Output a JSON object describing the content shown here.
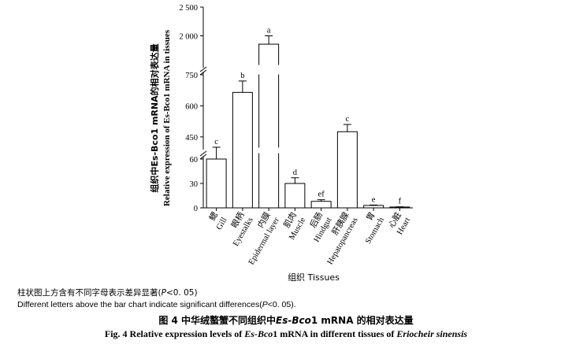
{
  "chart_data": {
    "type": "bar",
    "categories": [
      {
        "cn": "鳃",
        "en": "Gill"
      },
      {
        "cn": "眼柄",
        "en": "Eyestalks"
      },
      {
        "cn": "内膜",
        "en": "Epidermal layer"
      },
      {
        "cn": "肌肉",
        "en": "Muscle"
      },
      {
        "cn": "后肠",
        "en": "Hindgut"
      },
      {
        "cn": "肝胰腺",
        "en": "Hepatopancreas"
      },
      {
        "cn": "胃",
        "en": "Stomach"
      },
      {
        "cn": "心脏",
        "en": "Heart"
      }
    ],
    "values": [
      60,
      665,
      1855,
      30,
      8,
      475,
      3,
      1
    ],
    "errors": [
      2,
      55,
      145,
      7,
      2,
      35,
      0.5,
      0.3
    ],
    "significance_letters": [
      "c",
      "b",
      "a",
      "d",
      "ef",
      "c",
      "e",
      "f"
    ],
    "ylabel_cn": "组织中Es-Bco1 mRNA的相对表达量",
    "ylabel_en": "Relative expression of Es-Bco1 mRNA in tissues",
    "xlabel": "组织 Tissues",
    "y_ticks": [
      0,
      30,
      60,
      450,
      600,
      750,
      2000,
      2500
    ],
    "y_tick_labels": [
      "0",
      "30",
      "60",
      "450",
      "600",
      "750",
      "2 000",
      "2 500"
    ],
    "axis_breaks": true,
    "y_segments": [
      [
        0,
        60
      ],
      [
        400,
        750
      ],
      [
        1500,
        2500
      ]
    ]
  },
  "notes": {
    "cn_prefix": "柱状图上方含有不同字母表示差异显著(",
    "cn_p": "P",
    "cn_suffix": "<0. 05)",
    "en_prefix": "Different letters above the bar chart indicate significant differences(",
    "en_p": "P",
    "en_suffix": "<0. 05)."
  },
  "caption": {
    "cn_prefix": "图 4    中华绒螯蟹不同组织中",
    "cn_gene": "Es-Bco",
    "cn_suffix": "1 mRNA 的相对表达量",
    "en_prefix": "Fig. 4    Relative expression levels of ",
    "en_gene": "Es-Bco",
    "en_mid": "1 mRNA in different tissues of ",
    "en_species": "Eriocheir sinensis"
  }
}
